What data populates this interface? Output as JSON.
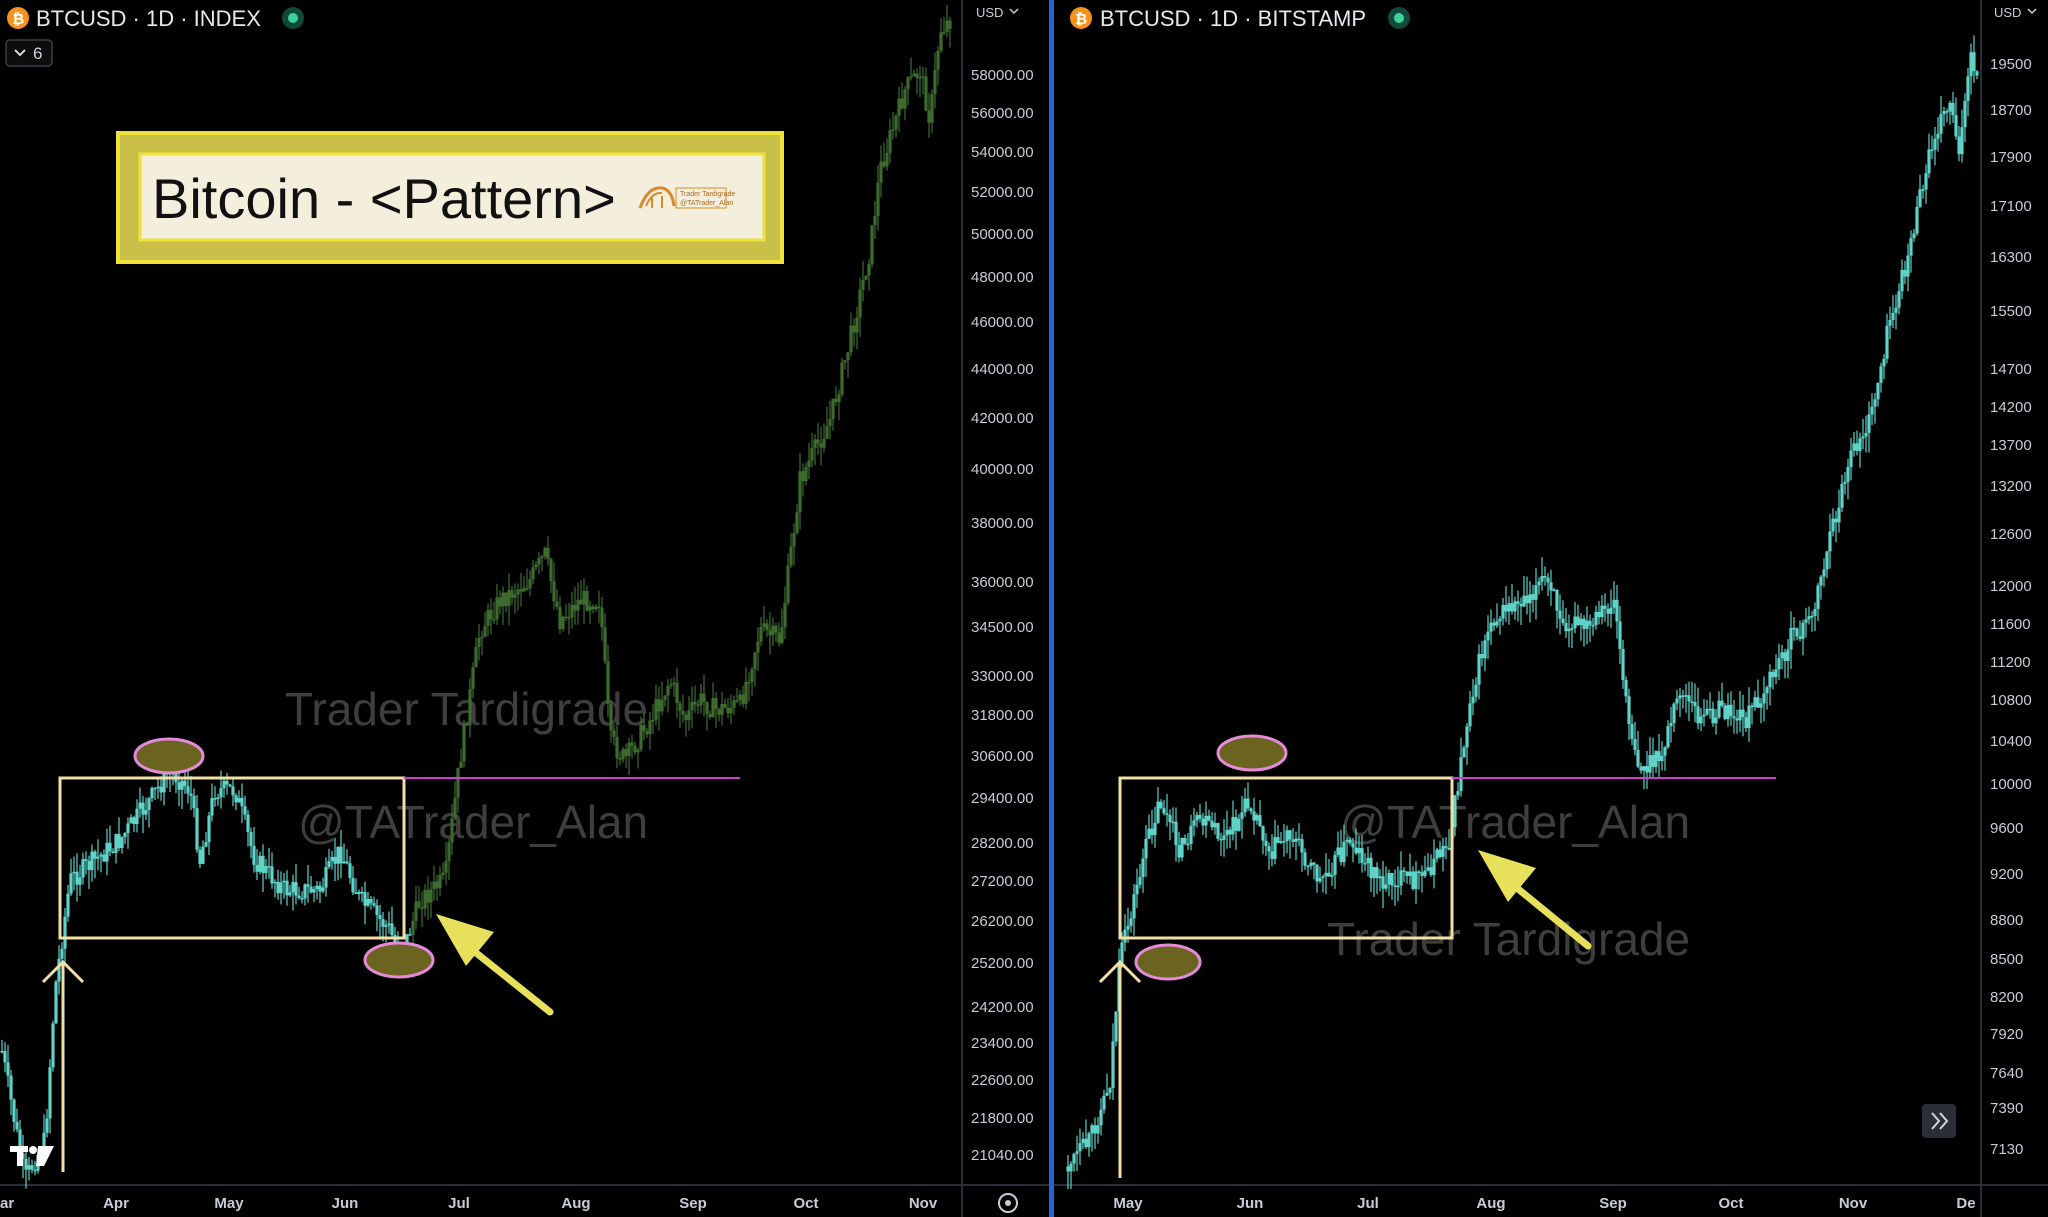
{
  "annotation": {
    "title": "Bitcoin - <Pattern>",
    "logo_text_1": "Trader Tardigrade",
    "logo_text_2": "@TATrader_Alan",
    "border_color": "#f0e23a",
    "fill_color": "#f3efdc"
  },
  "watermarks": {
    "name": "Trader Tardigrade",
    "handle": "@TATrader_Alan"
  },
  "left": {
    "header": "BTCUSD · 1D · INDEX",
    "coin_symbol": "₿",
    "currency": "USD",
    "indicator_count": "6",
    "y_ticks": [
      "58000.00",
      "56000.00",
      "54000.00",
      "52000.00",
      "50000.00",
      "48000.00",
      "46000.00",
      "44000.00",
      "42000.00",
      "40000.00",
      "38000.00",
      "36000.00",
      "34500.00",
      "33000.00",
      "31800.00",
      "30600.00",
      "29400.00",
      "28200.00",
      "27200.00",
      "26200.00",
      "25200.00",
      "24200.00",
      "23400.00",
      "22600.00",
      "21800.00",
      "21040.00"
    ],
    "x_ticks": [
      "ar",
      "Apr",
      "May",
      "Jun",
      "Jul",
      "Aug",
      "Sep",
      "Oct",
      "Nov"
    ]
  },
  "right": {
    "header": "BTCUSD · 1D · BITSTAMP",
    "coin_symbol": "₿",
    "currency": "USD",
    "y_ticks": [
      "19500",
      "18700",
      "17900",
      "17100",
      "16300",
      "15500",
      "14700",
      "14200",
      "13700",
      "13200",
      "12600",
      "12000",
      "11600",
      "11200",
      "10800",
      "10400",
      "10000",
      "9600",
      "9200",
      "8800",
      "8500",
      "8200",
      "7920",
      "7640",
      "7390",
      "7130"
    ],
    "x_ticks": [
      "May",
      "Jun",
      "Jul",
      "Aug",
      "Sep",
      "Oct",
      "Nov",
      "De"
    ]
  },
  "colors": {
    "candle_left_range": "#5fd3c8",
    "candle_left_after": "#3d6b2e",
    "candle_right": "#5fd3c8",
    "box": "#f2dfa3",
    "support_line": "#d23bd0",
    "ellipse_stroke": "#e58ad9",
    "ellipse_fill": "#6b6420",
    "arrow": "#e6e05a",
    "divider": "#2a62d8"
  }
}
